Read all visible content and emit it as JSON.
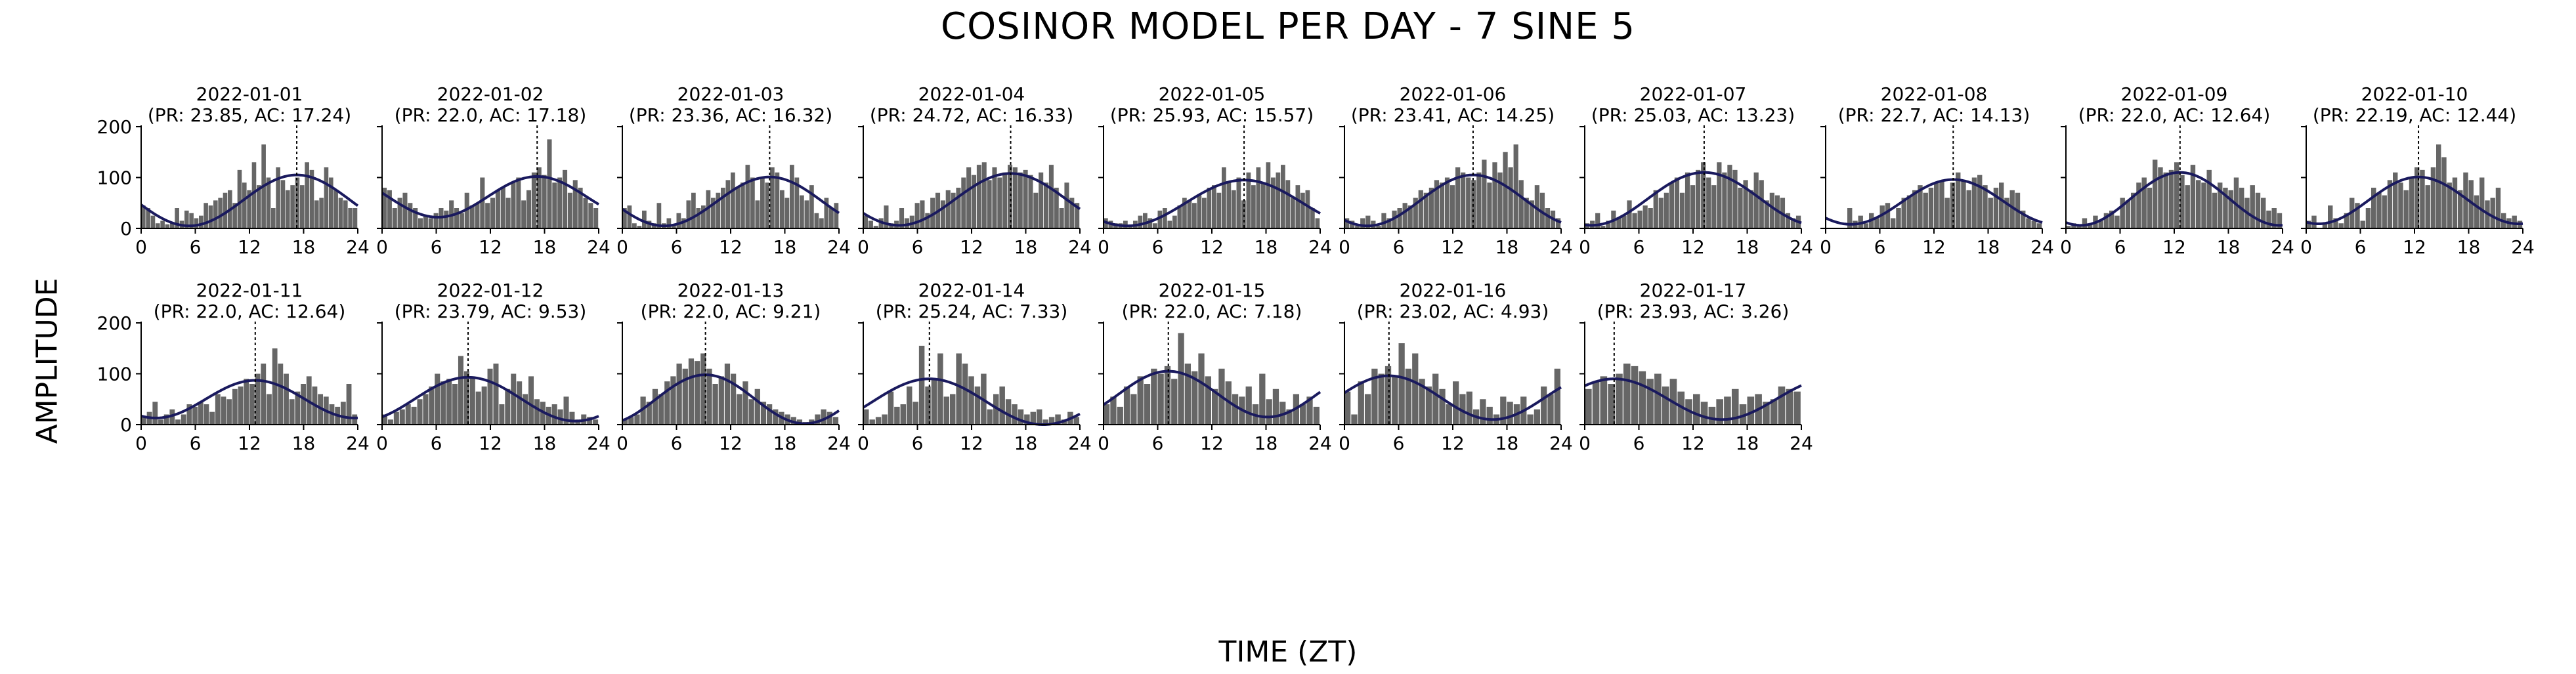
{
  "title": "COSINOR MODEL PER DAY - 7 SINE 5",
  "xlabel": "TIME (ZT)",
  "ylabel": "AMPLITUDE",
  "colors": {
    "bars": "#666666",
    "fit": "#1a1a5e",
    "acrophase_line": "#000000"
  },
  "chart_data": {
    "type": "bar",
    "xlim": [
      0,
      24
    ],
    "ylim": [
      0,
      200
    ],
    "xticks": [
      0,
      6,
      12,
      18,
      24
    ],
    "yticks": [
      0,
      100,
      200
    ],
    "grid": false,
    "panels": [
      {
        "date": "2022-01-01",
        "subtitle": "(PR: 23.85, AC: 17.24)",
        "pr": 23.85,
        "ac": 17.24,
        "mesor": 55,
        "amp": 50,
        "bars": [
          45,
          40,
          25,
          10,
          15,
          8,
          10,
          40,
          15,
          35,
          30,
          20,
          25,
          50,
          45,
          55,
          60,
          70,
          75,
          50,
          115,
          90,
          75,
          130,
          85,
          165,
          100,
          40,
          120,
          95,
          75,
          85,
          100,
          85,
          130,
          115,
          55,
          60,
          120,
          100,
          75,
          60,
          55,
          40,
          40
        ]
      },
      {
        "date": "2022-01-02",
        "subtitle": "(PR: 22.0, AC: 17.18)",
        "pr": 22.0,
        "ac": 17.18,
        "mesor": 62,
        "amp": 40,
        "bars": [
          80,
          75,
          40,
          60,
          70,
          50,
          40,
          20,
          25,
          20,
          30,
          40,
          35,
          55,
          40,
          30,
          70,
          45,
          50,
          100,
          50,
          60,
          75,
          80,
          60,
          90,
          100,
          55,
          75,
          110,
          120,
          105,
          175,
          90,
          100,
          115,
          70,
          95,
          80,
          60,
          50,
          40
        ]
      },
      {
        "date": "2022-01-03",
        "subtitle": "(PR: 23.36, AC: 16.32)",
        "pr": 23.36,
        "ac": 16.32,
        "mesor": 53,
        "amp": 48,
        "bars": [
          40,
          45,
          10,
          5,
          35,
          15,
          10,
          50,
          10,
          20,
          5,
          30,
          20,
          55,
          70,
          40,
          45,
          75,
          60,
          70,
          80,
          95,
          110,
          80,
          90,
          125,
          100,
          55,
          100,
          90,
          120,
          110,
          75,
          60,
          125,
          100,
          65,
          55,
          85,
          30,
          20,
          60,
          40,
          50
        ]
      },
      {
        "date": "2022-01-04",
        "subtitle": "(PR: 24.72, AC: 16.33)",
        "pr": 24.72,
        "ac": 16.33,
        "mesor": 57,
        "amp": 51,
        "bars": [
          25,
          15,
          5,
          20,
          45,
          10,
          15,
          40,
          20,
          25,
          50,
          55,
          30,
          60,
          70,
          55,
          75,
          70,
          80,
          100,
          120,
          105,
          125,
          130,
          95,
          120,
          100,
          110,
          125,
          120,
          110,
          115,
          105,
          70,
          110,
          90,
          125,
          80,
          40,
          90,
          60,
          50
        ]
      },
      {
        "date": "2022-01-05",
        "subtitle": "(PR: 25.93, AC: 15.57)",
        "pr": 25.93,
        "ac": 15.57,
        "mesor": 50,
        "amp": 45,
        "bars": [
          20,
          15,
          10,
          10,
          15,
          5,
          15,
          25,
          30,
          20,
          10,
          35,
          40,
          15,
          25,
          45,
          60,
          55,
          50,
          65,
          60,
          80,
          85,
          70,
          120,
          90,
          75,
          100,
          55,
          110,
          85,
          120,
          90,
          130,
          100,
          110,
          125,
          95,
          60,
          85,
          70,
          75,
          40,
          20
        ]
      },
      {
        "date": "2022-01-06",
        "subtitle": "(PR: 23.41, AC: 14.25)",
        "pr": 23.41,
        "ac": 14.25,
        "mesor": 55,
        "amp": 50,
        "bars": [
          20,
          15,
          5,
          20,
          25,
          15,
          5,
          30,
          20,
          35,
          40,
          50,
          45,
          60,
          75,
          70,
          80,
          95,
          90,
          100,
          85,
          120,
          110,
          100,
          95,
          110,
          135,
          90,
          130,
          110,
          150,
          120,
          165,
          95,
          60,
          55,
          85,
          70,
          40,
          35,
          20
        ]
      },
      {
        "date": "2022-01-07",
        "subtitle": "(PR: 25.03, AC: 13.23)",
        "pr": 25.03,
        "ac": 13.23,
        "mesor": 58,
        "amp": 52,
        "bars": [
          10,
          15,
          30,
          5,
          15,
          35,
          20,
          25,
          55,
          30,
          35,
          45,
          40,
          75,
          60,
          70,
          90,
          100,
          70,
          110,
          85,
          115,
          130,
          100,
          85,
          130,
          110,
          125,
          115,
          80,
          95,
          75,
          110,
          95,
          55,
          70,
          65,
          60,
          30,
          20,
          25
        ]
      },
      {
        "date": "2022-01-08",
        "subtitle": "(PR: 22.7, AC: 14.13)",
        "pr": 22.7,
        "ac": 14.13,
        "mesor": 52,
        "amp": 44,
        "bars": [
          0,
          0,
          0,
          0,
          40,
          15,
          25,
          10,
          30,
          20,
          45,
          50,
          20,
          40,
          60,
          65,
          75,
          85,
          70,
          80,
          90,
          95,
          60,
          90,
          110,
          95,
          75,
          100,
          105,
          85,
          60,
          80,
          90,
          60,
          75,
          70,
          35,
          20,
          15,
          10
        ]
      },
      {
        "date": "2022-01-09",
        "subtitle": "(PR: 22.0, AC: 12.64)",
        "pr": 22.0,
        "ac": 12.64,
        "mesor": 58,
        "amp": 52,
        "bars": [
          5,
          10,
          5,
          20,
          10,
          25,
          15,
          30,
          35,
          25,
          60,
          55,
          70,
          90,
          100,
          80,
          135,
          120,
          110,
          115,
          130,
          105,
          85,
          125,
          95,
          90,
          115,
          70,
          90,
          80,
          75,
          100,
          80,
          60,
          85,
          70,
          60,
          35,
          40,
          30
        ]
      },
      {
        "date": "2022-01-10",
        "subtitle": "(PR: 22.19, AC: 12.44)",
        "pr": 22.19,
        "ac": 12.44,
        "mesor": 55,
        "amp": 46,
        "bars": [
          15,
          25,
          0,
          10,
          45,
          20,
          10,
          30,
          60,
          50,
          15,
          40,
          80,
          70,
          65,
          95,
          110,
          90,
          75,
          100,
          120,
          115,
          85,
          120,
          165,
          140,
          90,
          100,
          75,
          110,
          95,
          65,
          100,
          55,
          60,
          80,
          30,
          20,
          25,
          15
        ]
      },
      {
        "date": "2022-01-11",
        "subtitle": "(PR: 22.0, AC: 12.64)",
        "pr": 22.0,
        "ac": 12.64,
        "mesor": 50,
        "amp": 37,
        "bars": [
          15,
          25,
          45,
          10,
          20,
          30,
          10,
          20,
          40,
          35,
          45,
          40,
          25,
          60,
          55,
          50,
          70,
          75,
          90,
          80,
          100,
          120,
          60,
          150,
          120,
          100,
          50,
          65,
          80,
          95,
          75,
          60,
          55,
          40,
          35,
          45,
          80,
          20
        ]
      },
      {
        "date": "2022-01-12",
        "subtitle": "(PR: 23.79, AC: 9.53)",
        "pr": 23.79,
        "ac": 9.53,
        "mesor": 50,
        "amp": 43,
        "bars": [
          20,
          10,
          25,
          30,
          40,
          35,
          50,
          60,
          75,
          100,
          85,
          90,
          80,
          135,
          105,
          95,
          65,
          75,
          110,
          120,
          40,
          70,
          100,
          85,
          60,
          95,
          50,
          45,
          35,
          40,
          30,
          55,
          25,
          10,
          20,
          15,
          10
        ]
      },
      {
        "date": "2022-01-13",
        "subtitle": "(PR: 22.0, AC: 9.21)",
        "pr": 22.0,
        "ac": 9.21,
        "mesor": 50,
        "amp": 48,
        "bars": [
          10,
          15,
          20,
          55,
          45,
          70,
          60,
          85,
          95,
          120,
          110,
          130,
          125,
          140,
          110,
          80,
          95,
          120,
          100,
          60,
          85,
          50,
          70,
          45,
          40,
          30,
          25,
          20,
          15,
          10,
          5,
          10,
          20,
          30,
          25,
          15
        ]
      },
      {
        "date": "2022-01-14",
        "subtitle": "(PR: 25.24, AC: 7.33)",
        "pr": 25.24,
        "ac": 7.33,
        "mesor": 45,
        "amp": 45,
        "bars": [
          30,
          10,
          15,
          20,
          65,
          35,
          40,
          75,
          45,
          155,
          75,
          90,
          140,
          55,
          60,
          140,
          120,
          95,
          75,
          100,
          30,
          60,
          75,
          50,
          40,
          30,
          20,
          25,
          30,
          10,
          15,
          20,
          10,
          25,
          15
        ]
      },
      {
        "date": "2022-01-15",
        "subtitle": "(PR: 22.0, AC: 7.18)",
        "pr": 22.0,
        "ac": 7.18,
        "mesor": 60,
        "amp": 45,
        "bars": [
          40,
          55,
          35,
          75,
          60,
          95,
          80,
          110,
          100,
          115,
          90,
          180,
          120,
          105,
          140,
          95,
          70,
          110,
          85,
          60,
          55,
          75,
          40,
          100,
          50,
          70,
          45,
          30,
          60,
          40,
          55,
          35
        ]
      },
      {
        "date": "2022-01-16",
        "subtitle": "(PR: 23.02, AC: 4.93)",
        "pr": 23.02,
        "ac": 4.93,
        "mesor": 53,
        "amp": 43,
        "bars": [
          65,
          20,
          85,
          60,
          110,
          100,
          115,
          95,
          160,
          110,
          140,
          90,
          75,
          100,
          70,
          40,
          85,
          60,
          65,
          30,
          50,
          35,
          20,
          55,
          45,
          40,
          55,
          20,
          30,
          75,
          60,
          110
        ]
      },
      {
        "date": "2022-01-17",
        "subtitle": "(PR: 23.93, AC: 3.26)",
        "pr": 23.93,
        "ac": 3.26,
        "mesor": 50,
        "amp": 40,
        "bars": [
          70,
          85,
          95,
          80,
          100,
          120,
          115,
          105,
          90,
          100,
          75,
          90,
          65,
          50,
          60,
          45,
          35,
          50,
          55,
          70,
          40,
          55,
          60,
          45,
          50,
          75,
          70,
          65
        ]
      }
    ]
  }
}
